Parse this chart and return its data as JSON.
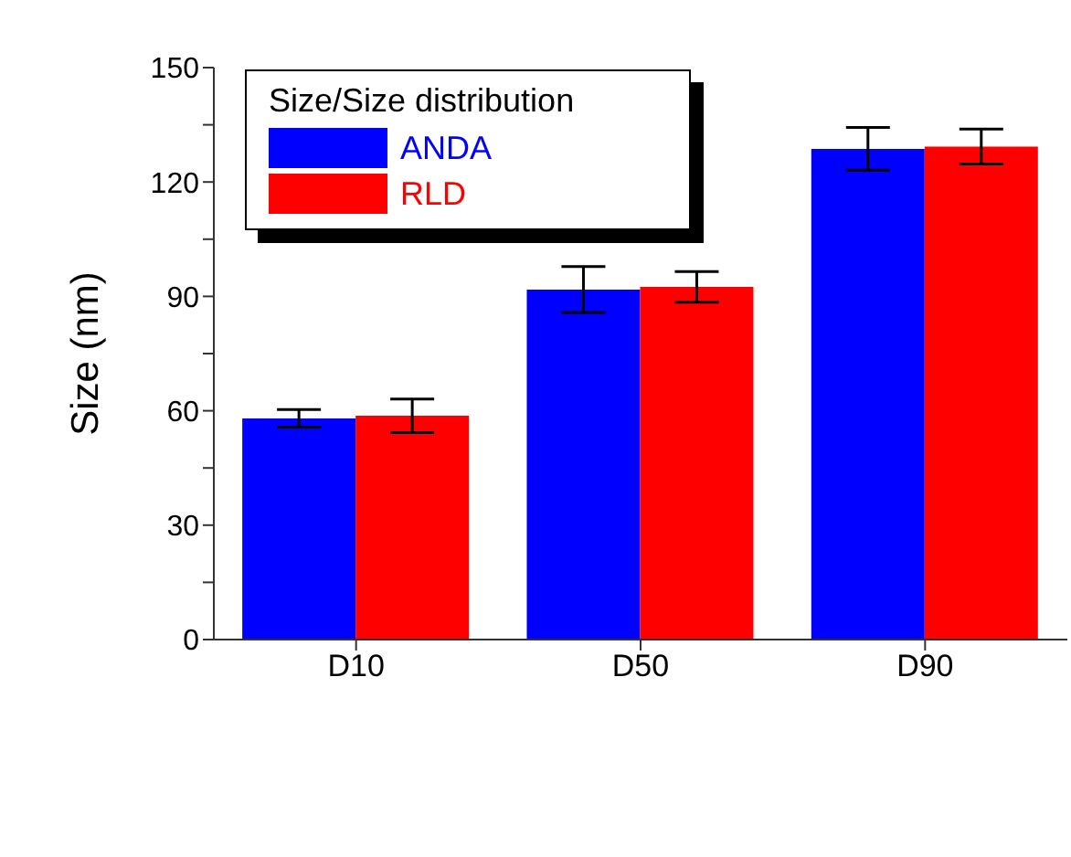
{
  "chart_data": {
    "type": "bar",
    "ylabel": "Size (nm)",
    "legend_title": "Size/Size distribution",
    "categories": [
      "D10",
      "D50",
      "D90"
    ],
    "series": [
      {
        "name": "ANDA",
        "color": "#0000ff",
        "values": [
          58,
          91.8,
          128.7
        ],
        "errors": [
          2.3,
          6,
          5.6
        ]
      },
      {
        "name": "RLD",
        "color": "#ff0000",
        "values": [
          58.7,
          92.5,
          129.3
        ],
        "errors": [
          4.4,
          4,
          4.6
        ]
      }
    ],
    "ylim": [
      0,
      150
    ],
    "yticks": [
      0,
      {
        "value": 15,
        "label": null
      },
      30,
      {
        "value": 45,
        "label": null
      },
      60,
      {
        "value": 75,
        "label": null
      },
      90,
      {
        "value": 105,
        "label": null
      },
      120,
      {
        "value": 135,
        "label": null
      },
      150
    ],
    "legend": "top left",
    "grid": false
  }
}
